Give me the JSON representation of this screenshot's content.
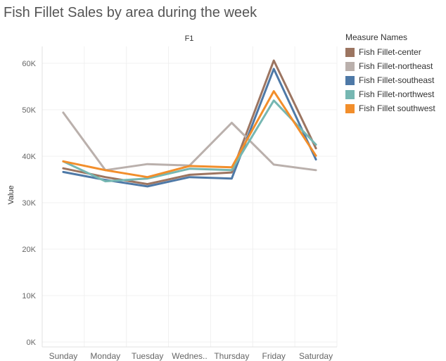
{
  "chart_data": {
    "type": "line",
    "title": "Fish Fillet Sales by area during the week",
    "panel_title": "F1",
    "xlabel": "",
    "ylabel": "Value",
    "categories": [
      "Sunday",
      "Monday",
      "Tuesday",
      "Wednes..",
      "Thursday",
      "Friday",
      "Saturday"
    ],
    "ylim": [
      0,
      64000
    ],
    "yticks": [
      {
        "value": 0,
        "label": "0K"
      },
      {
        "value": 10000,
        "label": "10K"
      },
      {
        "value": 20000,
        "label": "20K"
      },
      {
        "value": 30000,
        "label": "30K"
      },
      {
        "value": 40000,
        "label": "40K"
      },
      {
        "value": 50000,
        "label": "50K"
      },
      {
        "value": 60000,
        "label": "60K"
      }
    ],
    "grid": true,
    "legend": {
      "title": "Measure Names",
      "placement": "right"
    },
    "series": [
      {
        "name": "Fish Fillet-center",
        "color": "#9c7561",
        "values": [
          37400,
          35500,
          34000,
          36000,
          36500,
          60600,
          41700
        ]
      },
      {
        "name": "Fish Fillet-northeast",
        "color": "#bab0ac",
        "values": [
          49400,
          37000,
          38300,
          38000,
          47200,
          38200,
          37000
        ]
      },
      {
        "name": "Fish Fillet-southeast",
        "color": "#4e79a7",
        "values": [
          36600,
          34900,
          33500,
          35500,
          35200,
          58800,
          39300
        ]
      },
      {
        "name": "Fish Fillet-northwest",
        "color": "#76b7b2",
        "values": [
          38900,
          34600,
          35200,
          37300,
          37000,
          52000,
          42500
        ]
      },
      {
        "name": "Fish Fillet southwest",
        "color": "#f28e2b",
        "values": [
          38900,
          37000,
          35500,
          37900,
          37600,
          54000,
          40100
        ]
      }
    ]
  }
}
